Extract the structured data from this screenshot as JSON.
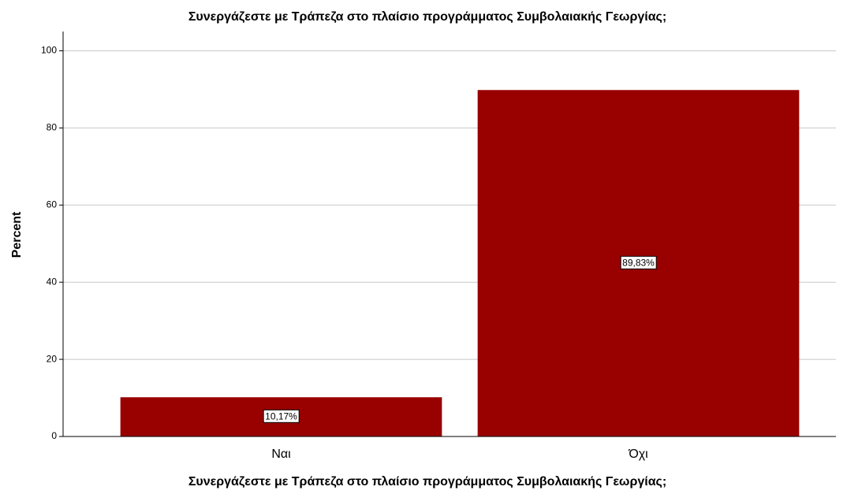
{
  "chart_data": {
    "type": "bar",
    "title": "Συνεργάζεστε με Τράπεζα στο πλαίσιο προγράμματος Συμβολαιακής Γεωργίας;",
    "x_label": "Συνεργάζεστε με Τράπεζα στο πλαίσιο προγράμματος Συμβολαιακής Γεωργίας;",
    "y_label": "Percent",
    "categories": [
      "Ναι",
      "Όχι"
    ],
    "values": [
      10.17,
      89.83
    ],
    "value_labels": [
      "10,17%",
      "89,83%"
    ],
    "color": "#990000",
    "ylim": [
      0,
      105
    ],
    "yticks": [
      0,
      20,
      40,
      60,
      80,
      100
    ],
    "grid": true
  }
}
